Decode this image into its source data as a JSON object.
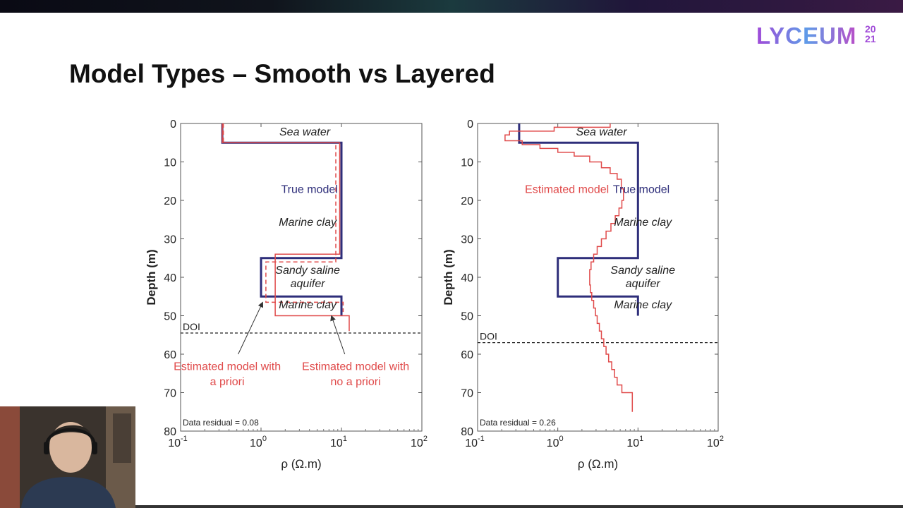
{
  "slide": {
    "title": "Model Types – Smooth vs Layered",
    "logo_word": "LYCEUM",
    "logo_year_top": "20",
    "logo_year_bottom": "21"
  },
  "chart_data": [
    {
      "type": "line",
      "panel": "left",
      "xlabel": "ρ (Ω.m)",
      "ylabel": "Depth (m)",
      "x_scale": "log",
      "xlim": [
        0.1,
        100
      ],
      "ylim": [
        0,
        80
      ],
      "x_tick_labels": [
        "10-1",
        "100",
        "101",
        "102"
      ],
      "y_ticks": [
        0,
        10,
        20,
        30,
        40,
        50,
        60,
        70,
        80
      ],
      "doi": {
        "label": "DOI",
        "depth": 54.5
      },
      "series": [
        {
          "name": "True model",
          "color": "#2e2e7a",
          "style": "solid",
          "points": [
            [
              0.33,
              0
            ],
            [
              0.33,
              5
            ],
            [
              10,
              5
            ],
            [
              10,
              35
            ],
            [
              1.0,
              35
            ],
            [
              1.0,
              45
            ],
            [
              10,
              45
            ],
            [
              10,
              50
            ]
          ]
        },
        {
          "color": "#e04a4a",
          "style": "solid",
          "points": [
            [
              0.33,
              0
            ],
            [
              0.33,
              5
            ],
            [
              9.5,
              5
            ],
            [
              9.5,
              34
            ],
            [
              1.5,
              34
            ],
            [
              1.5,
              50
            ],
            [
              12.5,
              50
            ],
            [
              12.5,
              54
            ]
          ]
        },
        {
          "color": "#e04a4a",
          "style": "dashed",
          "points": [
            [
              0.34,
              0
            ],
            [
              0.34,
              5
            ],
            [
              8.5,
              5
            ],
            [
              8.5,
              36
            ],
            [
              1.15,
              36
            ],
            [
              1.15,
              46.5
            ],
            [
              10.5,
              46.5
            ],
            [
              10.5,
              49
            ]
          ]
        }
      ],
      "labels": [
        {
          "text": "Sea water",
          "x": 3.5,
          "y": 2
        },
        {
          "text": "True model",
          "x": 4.0,
          "y": 17,
          "color": "#2e2e7a"
        },
        {
          "text": "Marine clay",
          "x": 3.8,
          "y": 25.5
        },
        {
          "text": "Sandy saline",
          "x": 3.8,
          "y": 38
        },
        {
          "text": "aquifer",
          "x": 3.8,
          "y": 41.5
        },
        {
          "text": "Marine clay",
          "x": 3.8,
          "y": 47
        },
        {
          "text": "Estimated model with",
          "x": 0.38,
          "y": 63,
          "color": "#e04a4a"
        },
        {
          "text": "a priori",
          "x": 0.38,
          "y": 67,
          "color": "#e04a4a"
        },
        {
          "text": "Estimated model with",
          "x": 15,
          "y": 63,
          "color": "#e04a4a"
        },
        {
          "text": "no a priori",
          "x": 15,
          "y": 67,
          "color": "#e04a4a"
        }
      ],
      "arrows": [
        [
          [
            0.52,
            60
          ],
          [
            1.05,
            46.5
          ]
        ],
        [
          [
            11,
            60
          ],
          [
            7.5,
            50
          ]
        ]
      ],
      "residual": "Data residual = 0.08"
    },
    {
      "type": "line",
      "panel": "right",
      "xlabel": "ρ (Ω.m)",
      "ylabel": "Depth (m)",
      "x_scale": "log",
      "xlim": [
        0.1,
        100
      ],
      "ylim": [
        0,
        80
      ],
      "x_tick_labels": [
        "10-1",
        "100",
        "101",
        "102"
      ],
      "y_ticks": [
        0,
        10,
        20,
        30,
        40,
        50,
        60,
        70,
        80
      ],
      "doi": {
        "label": "DOI",
        "depth": 57
      },
      "series": [
        {
          "name": "True model",
          "color": "#2e2e7a",
          "style": "solid",
          "points": [
            [
              0.33,
              0
            ],
            [
              0.33,
              5
            ],
            [
              10,
              5
            ],
            [
              10,
              35
            ],
            [
              1.0,
              35
            ],
            [
              1.0,
              45
            ],
            [
              10,
              45
            ],
            [
              10,
              50
            ]
          ]
        },
        {
          "name": "Estimated model",
          "color": "#e04a4a",
          "style": "solid",
          "points": [
            [
              4.5,
              0
            ],
            [
              4.5,
              1
            ],
            [
              0.9,
              1
            ],
            [
              0.9,
              2
            ],
            [
              0.25,
              2
            ],
            [
              0.25,
              3
            ],
            [
              0.22,
              3
            ],
            [
              0.22,
              4.5
            ],
            [
              0.36,
              4.5
            ],
            [
              0.36,
              5.5
            ],
            [
              0.6,
              5.5
            ],
            [
              0.6,
              6.5
            ],
            [
              1.0,
              6.5
            ],
            [
              1.0,
              7.5
            ],
            [
              1.6,
              7.5
            ],
            [
              1.6,
              8.5
            ],
            [
              2.5,
              8.5
            ],
            [
              2.5,
              10
            ],
            [
              3.5,
              10
            ],
            [
              3.5,
              11.5
            ],
            [
              4.5,
              11.5
            ],
            [
              4.5,
              13
            ],
            [
              5.5,
              13
            ],
            [
              5.5,
              14.5
            ],
            [
              6.2,
              14.5
            ],
            [
              6.2,
              17
            ],
            [
              6.6,
              17
            ],
            [
              6.6,
              20
            ],
            [
              6.3,
              20
            ],
            [
              6.3,
              22
            ],
            [
              5.8,
              22
            ],
            [
              5.8,
              24
            ],
            [
              5.2,
              24
            ],
            [
              5.2,
              26
            ],
            [
              4.6,
              26
            ],
            [
              4.6,
              28
            ],
            [
              4.0,
              28
            ],
            [
              4.0,
              30
            ],
            [
              3.5,
              30
            ],
            [
              3.5,
              32
            ],
            [
              3.1,
              32
            ],
            [
              3.1,
              34
            ],
            [
              2.8,
              34
            ],
            [
              2.8,
              36
            ],
            [
              2.6,
              36
            ],
            [
              2.6,
              38
            ],
            [
              2.5,
              38
            ],
            [
              2.5,
              42
            ],
            [
              2.55,
              42
            ],
            [
              2.55,
              44
            ],
            [
              2.65,
              44
            ],
            [
              2.65,
              46
            ],
            [
              2.8,
              46
            ],
            [
              2.8,
              48
            ],
            [
              2.95,
              48
            ],
            [
              2.95,
              50
            ],
            [
              3.1,
              50
            ],
            [
              3.1,
              52
            ],
            [
              3.3,
              52
            ],
            [
              3.3,
              54
            ],
            [
              3.5,
              54
            ],
            [
              3.5,
              56
            ],
            [
              3.75,
              56
            ],
            [
              3.75,
              58
            ],
            [
              4.0,
              58
            ],
            [
              4.0,
              60
            ],
            [
              4.3,
              60
            ],
            [
              4.3,
              62
            ],
            [
              4.7,
              62
            ],
            [
              4.7,
              64
            ],
            [
              5.1,
              64
            ],
            [
              5.1,
              66
            ],
            [
              5.5,
              66
            ],
            [
              5.5,
              68
            ],
            [
              6.3,
              68
            ],
            [
              6.3,
              70
            ],
            [
              8.5,
              70
            ],
            [
              8.5,
              75
            ]
          ]
        }
      ],
      "labels": [
        {
          "text": "Sea water",
          "x": 3.5,
          "y": 2
        },
        {
          "text": "Estimated model",
          "x": 1.3,
          "y": 17,
          "color": "#e04a4a"
        },
        {
          "text": "True model",
          "x": 11,
          "y": 17,
          "color": "#2e2e7a"
        },
        {
          "text": "Marine clay",
          "x": 11.5,
          "y": 25.5
        },
        {
          "text": "Sandy saline",
          "x": 11.5,
          "y": 38
        },
        {
          "text": "aquifer",
          "x": 11.5,
          "y": 41.5
        },
        {
          "text": "Marine clay",
          "x": 11.5,
          "y": 47
        }
      ],
      "arrows": [],
      "residual": "Data residual = 0.26"
    }
  ]
}
